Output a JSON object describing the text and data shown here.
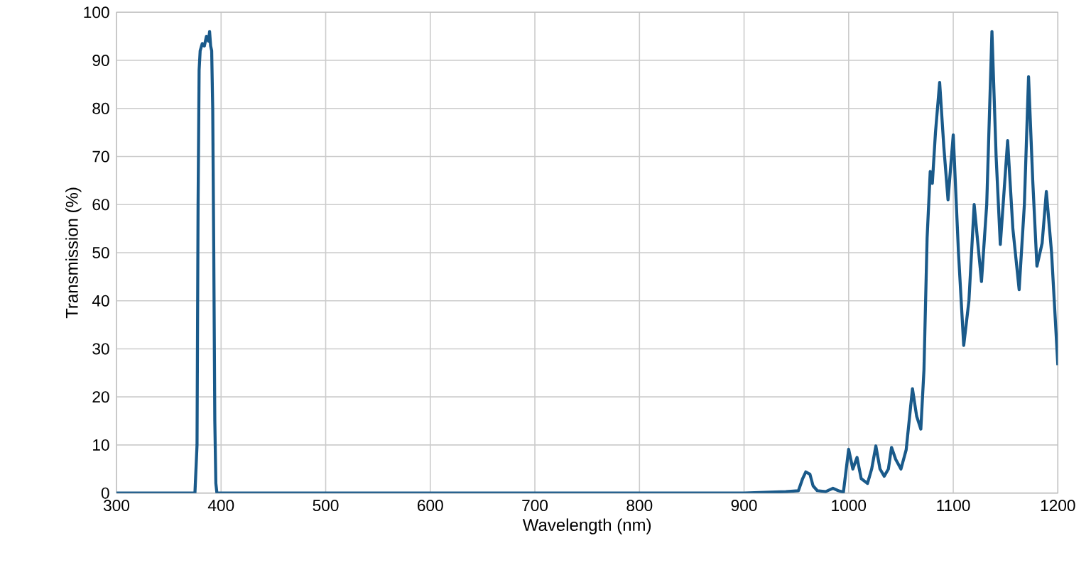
{
  "chart_data": {
    "type": "line",
    "xlabel": "Wavelength (nm)",
    "ylabel": "Transmission (%)",
    "x": [
      300,
      374,
      375,
      377,
      378,
      379,
      380,
      382,
      384,
      386,
      388,
      389,
      390,
      391,
      392,
      393,
      394,
      395,
      396,
      397,
      820,
      900,
      940,
      952,
      956,
      959,
      963,
      966,
      970,
      978,
      985,
      990,
      995,
      1000,
      1004,
      1008,
      1012,
      1018,
      1022,
      1026,
      1030,
      1034,
      1038,
      1041,
      1045,
      1050,
      1055,
      1061,
      1065,
      1069,
      1072,
      1075,
      1078,
      1080,
      1083,
      1087,
      1091,
      1095,
      1100,
      1105,
      1110,
      1115,
      1120,
      1127,
      1132,
      1137,
      1141,
      1145,
      1152,
      1157,
      1163,
      1168,
      1172,
      1176,
      1180,
      1185,
      1189,
      1194,
      1200
    ],
    "series": [
      {
        "color": "#1a5a8a",
        "values": [
          0,
          0,
          0,
          10,
          60,
          88,
          92,
          93.5,
          93,
          95,
          94,
          96,
          93,
          92,
          80,
          50,
          15,
          2,
          0,
          0,
          0,
          0,
          0.3,
          0.5,
          3,
          4.4,
          3.9,
          1.5,
          0.5,
          0.3,
          1,
          0.5,
          0.2,
          9.1,
          5,
          7.4,
          3,
          2,
          5,
          9.8,
          5,
          3.5,
          5,
          9.5,
          7,
          5,
          9,
          21.7,
          16,
          13.3,
          25.6,
          53,
          66.9,
          64.4,
          75,
          85.4,
          72,
          61,
          74.5,
          50,
          30.7,
          40,
          60,
          44,
          60,
          96,
          70,
          51.7,
          73.3,
          55,
          42.3,
          60,
          86.6,
          65,
          47.2,
          52,
          62.7,
          50,
          26.6
        ]
      }
    ],
    "xlim": [
      300,
      1200
    ],
    "ylim": [
      0,
      100
    ],
    "xticks": [
      300,
      400,
      500,
      600,
      700,
      800,
      900,
      1000,
      1100,
      1200
    ],
    "yticks": [
      0,
      10,
      20,
      30,
      40,
      50,
      60,
      70,
      80,
      90,
      100
    ],
    "grid": true,
    "marker": "none",
    "line_style": "solid"
  }
}
